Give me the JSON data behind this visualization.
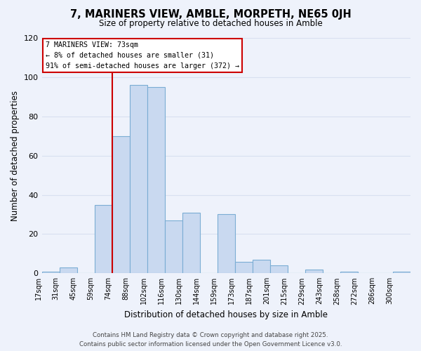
{
  "title": "7, MARINERS VIEW, AMBLE, MORPETH, NE65 0JH",
  "subtitle": "Size of property relative to detached houses in Amble",
  "xlabel": "Distribution of detached houses by size in Amble",
  "ylabel": "Number of detached properties",
  "bin_labels": [
    "17sqm",
    "31sqm",
    "45sqm",
    "59sqm",
    "74sqm",
    "88sqm",
    "102sqm",
    "116sqm",
    "130sqm",
    "144sqm",
    "159sqm",
    "173sqm",
    "187sqm",
    "201sqm",
    "215sqm",
    "229sqm",
    "243sqm",
    "258sqm",
    "272sqm",
    "286sqm",
    "300sqm"
  ],
  "bar_heights": [
    1,
    3,
    0,
    35,
    70,
    96,
    95,
    27,
    31,
    0,
    30,
    6,
    7,
    4,
    0,
    2,
    0,
    1,
    0,
    0,
    1
  ],
  "bar_color": "#c9d9f0",
  "bar_edge_color": "#7badd4",
  "vline_bar_index": 4,
  "vline_color": "#cc0000",
  "ylim": [
    0,
    120
  ],
  "yticks": [
    0,
    20,
    40,
    60,
    80,
    100,
    120
  ],
  "annotation_title": "7 MARINERS VIEW: 73sqm",
  "annotation_line1": "← 8% of detached houses are smaller (31)",
  "annotation_line2": "91% of semi-detached houses are larger (372) →",
  "annotation_box_color": "#ffffff",
  "annotation_box_edgecolor": "#cc0000",
  "footer_line1": "Contains HM Land Registry data © Crown copyright and database right 2025.",
  "footer_line2": "Contains public sector information licensed under the Open Government Licence v3.0.",
  "bg_color": "#eef2fb",
  "grid_color": "#d8e0f0"
}
